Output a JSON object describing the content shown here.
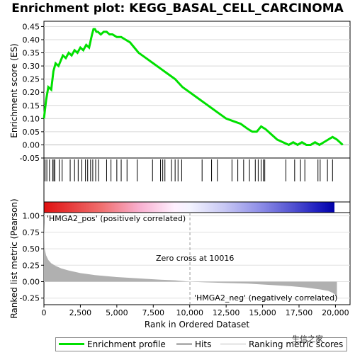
{
  "title": "Enrichment plot: KEGG_BASAL_CELL_CARCINOMA",
  "watermark": "生信之家",
  "colors": {
    "es_line": "#00e000",
    "metric_fill": "#b0b0b0",
    "pos_label": "#cc0000",
    "neg_label": "#000099",
    "zero_line": "#999999"
  },
  "legend": {
    "enrichment_profile": "Enrichment profile",
    "hits": "Hits",
    "ranking_metric": "Ranking metric scores"
  },
  "chart_data": [
    {
      "type": "line",
      "name": "enrichment-score",
      "ylabel": "Enrichment score (ES)",
      "ylim": [
        -0.05,
        0.47
      ],
      "xlim": [
        0,
        21000
      ],
      "yticks": [
        "0.45",
        "0.40",
        "0.35",
        "0.30",
        "0.25",
        "0.20",
        "0.15",
        "0.10",
        "0.05",
        "0.00",
        "-0.05"
      ],
      "grid": true,
      "x": [
        0,
        150,
        300,
        500,
        650,
        800,
        1000,
        1150,
        1300,
        1500,
        1700,
        1900,
        2100,
        2300,
        2500,
        2700,
        2900,
        3100,
        3300,
        3400,
        3500,
        3600,
        3700,
        3900,
        4100,
        4300,
        4500,
        4700,
        5000,
        5300,
        5600,
        5900,
        6200,
        6500,
        7000,
        7500,
        8000,
        8500,
        9000,
        9500,
        10000,
        10500,
        11000,
        11500,
        12000,
        12500,
        13000,
        13500,
        14000,
        14300,
        14600,
        14900,
        15200,
        15600,
        16000,
        16400,
        16800,
        17100,
        17400,
        17700,
        18000,
        18300,
        18600,
        18900,
        19200,
        19500,
        19800,
        20100,
        20500
      ],
      "y": [
        0.1,
        0.17,
        0.22,
        0.21,
        0.28,
        0.31,
        0.3,
        0.32,
        0.34,
        0.33,
        0.35,
        0.34,
        0.36,
        0.35,
        0.37,
        0.36,
        0.38,
        0.37,
        0.42,
        0.44,
        0.44,
        0.43,
        0.43,
        0.42,
        0.43,
        0.43,
        0.42,
        0.42,
        0.41,
        0.41,
        0.4,
        0.39,
        0.37,
        0.35,
        0.33,
        0.31,
        0.29,
        0.27,
        0.25,
        0.22,
        0.2,
        0.18,
        0.16,
        0.14,
        0.12,
        0.1,
        0.09,
        0.08,
        0.06,
        0.05,
        0.05,
        0.07,
        0.06,
        0.04,
        0.02,
        0.01,
        0.0,
        0.01,
        0.0,
        0.01,
        0.0,
        0.0,
        0.01,
        0.0,
        0.01,
        0.02,
        0.03,
        0.02,
        0.0
      ]
    },
    {
      "type": "scatter",
      "name": "hits",
      "x": [
        80,
        200,
        380,
        600,
        680,
        750,
        1050,
        1250,
        1800,
        2100,
        2350,
        2600,
        2850,
        3000,
        3200,
        3350,
        3550,
        3750,
        4300,
        4600,
        5000,
        5300,
        5700,
        6400,
        7450,
        8000,
        8150,
        8300,
        8750,
        9000,
        9200,
        9450,
        10850,
        11500,
        11900,
        12900,
        13300,
        13700,
        14100,
        14500,
        14700,
        14900,
        15050,
        15150,
        16600,
        17200,
        17600,
        17900,
        18800,
        18950,
        19450,
        19800
      ],
      "xlim": [
        0,
        21000
      ]
    },
    {
      "type": "area",
      "name": "ranking-metric",
      "xlabel": "Rank in Ordered Dataset",
      "ylabel": "Ranked list metric (Pearson)",
      "ylim": [
        -0.35,
        1.05
      ],
      "xlim": [
        0,
        21000
      ],
      "xticks": [
        "0",
        "2,500",
        "5,000",
        "7,500",
        "10,000",
        "12,500",
        "15,000",
        "17,500",
        "20,000"
      ],
      "yticks": [
        "1.00",
        "0.75",
        "0.50",
        "0.25",
        "0.00",
        "-0.25"
      ],
      "x": [
        0,
        50,
        150,
        300,
        500,
        800,
        1200,
        1700,
        2500,
        3500,
        5000,
        6500,
        8000,
        9000,
        10016,
        11000,
        12500,
        14000,
        15500,
        17000,
        18000,
        19000,
        19500,
        19800,
        20000,
        20100
      ],
      "y": [
        0.9,
        0.5,
        0.4,
        0.33,
        0.28,
        0.24,
        0.2,
        0.17,
        0.13,
        0.1,
        0.07,
        0.05,
        0.03,
        0.02,
        0.0,
        -0.01,
        -0.02,
        -0.03,
        -0.05,
        -0.07,
        -0.09,
        -0.12,
        -0.14,
        -0.17,
        -0.2,
        -0.25
      ],
      "pos_annotation": "'HMGA2_pos' (positively correlated)",
      "neg_annotation": "'HMGA2_neg' (negatively correlated)",
      "zero_cross": "Zero cross at 10016"
    }
  ]
}
